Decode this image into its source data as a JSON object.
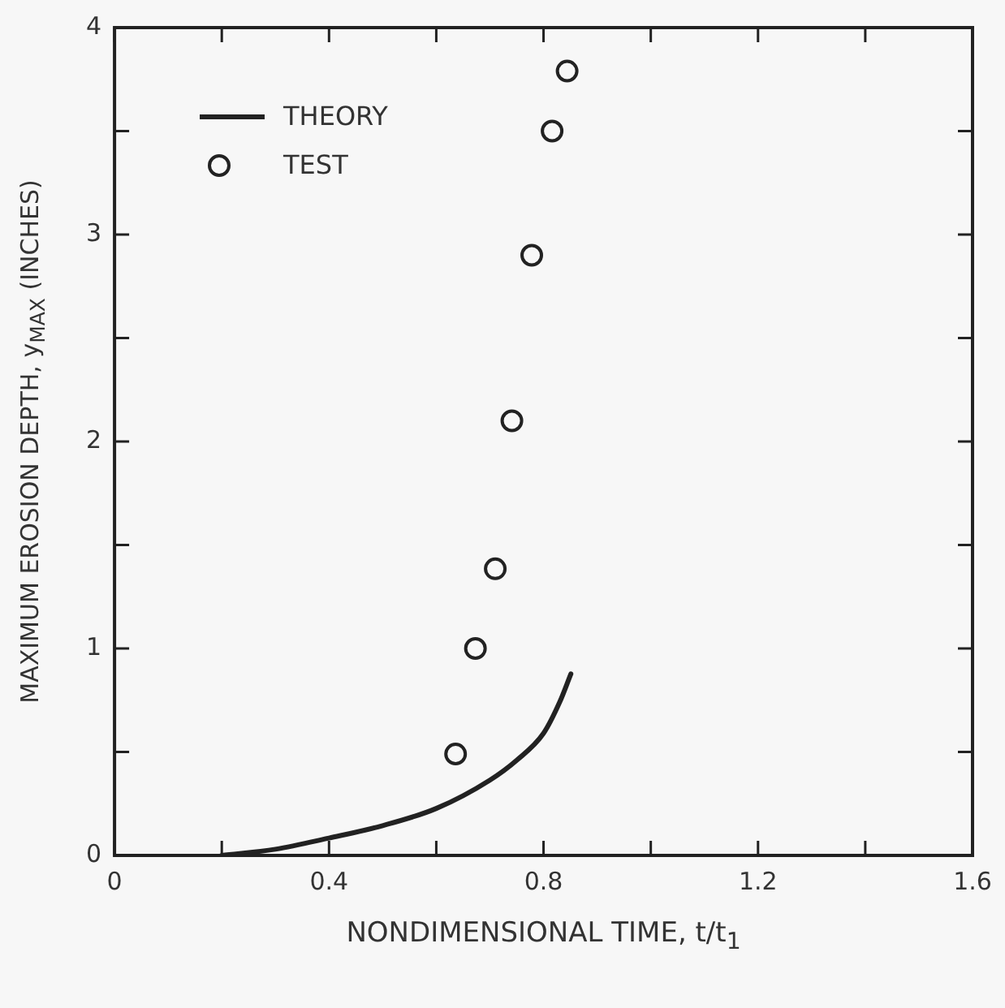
{
  "chart_data": {
    "type": "scatter",
    "xlabel": "NONDIMENSIONAL TIME, t/t$_{1}$",
    "ylabel": "MAXIMUM EROSION DEPTH, y$_{MAX}$ (INCHES)",
    "series": [
      {
        "name": "THEORY",
        "type": "line",
        "color": "#222222",
        "marker": "none",
        "line_style": "solid",
        "x": [
          0.2,
          0.3,
          0.4,
          0.5,
          0.6,
          0.7,
          0.75,
          0.8,
          0.83,
          0.851
        ],
        "values": [
          0,
          0.03,
          0.084,
          0.144,
          0.227,
          0.364,
          0.46,
          0.59,
          0.74,
          0.877
        ]
      },
      {
        "name": "TEST",
        "color": "#222222",
        "marker": "circle",
        "x": [
          0.636,
          0.673,
          0.71,
          0.741,
          0.778,
          0.816,
          0.844
        ],
        "values": [
          0.49,
          1.0,
          1.385,
          2.1,
          2.9,
          3.5,
          3.79
        ]
      }
    ],
    "xlim": [
      0,
      1.6
    ],
    "ylim": [
      0,
      4
    ],
    "xticks": [
      0,
      {
        "value": 0.2,
        "label": null
      },
      0.4,
      {
        "value": 0.6,
        "label": null
      },
      0.8,
      {
        "value": 1.0,
        "label": null
      },
      1.2,
      {
        "value": 1.4,
        "label": null
      },
      1.6
    ],
    "yticks": [
      0,
      {
        "value": 0.5,
        "label": null
      },
      1,
      {
        "value": 1.5,
        "label": null
      },
      2,
      {
        "value": 2.5,
        "label": null
      },
      3,
      {
        "value": 3.5,
        "label": null
      },
      4
    ],
    "grid": false,
    "legend": "top left"
  }
}
